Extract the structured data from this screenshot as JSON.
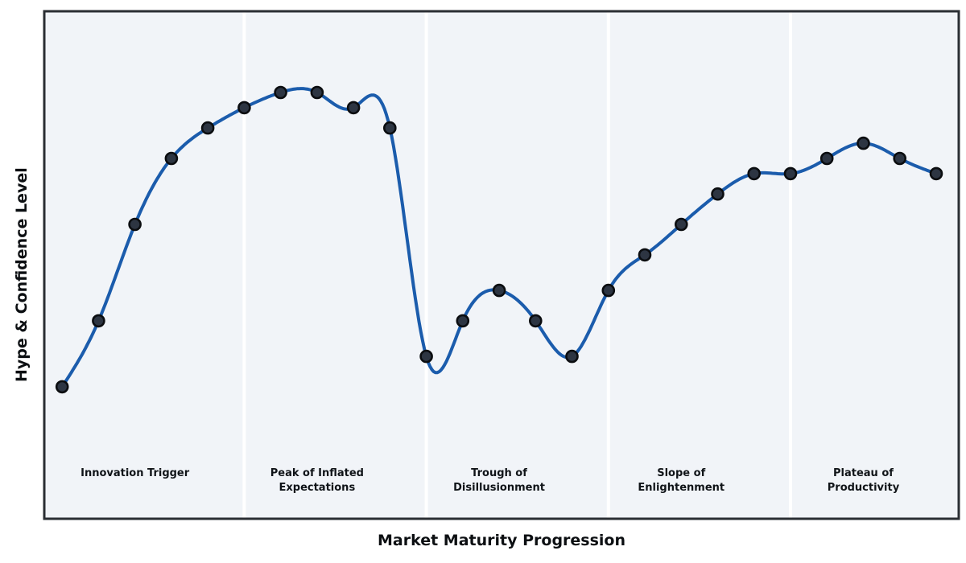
{
  "chart_data": {
    "type": "line",
    "subtype": "hype-cycle",
    "title": "",
    "xlabel": "Market Maturity Progression",
    "ylabel": "Hype & Confidence Level",
    "x": [
      0,
      1,
      2,
      3,
      4,
      5,
      6,
      7,
      8,
      9,
      10,
      11,
      12,
      13,
      14,
      15,
      16,
      17,
      18,
      19,
      20,
      21,
      22,
      23,
      24
    ],
    "series": [
      {
        "name": "Hype & Confidence Level",
        "values": [
          26,
          39,
          58,
          71,
          77,
          81,
          84,
          84,
          81,
          77,
          32,
          39,
          45,
          39,
          32,
          45,
          52,
          58,
          64,
          68,
          68,
          71,
          74,
          71,
          68
        ]
      }
    ],
    "curve_extra_anchors": [
      [
        8.53,
        83.5
      ],
      [
        10.3,
        28.8
      ]
    ],
    "xlim": [
      -0.49,
      24.62
    ],
    "ylim": [
      0,
      100
    ],
    "grid": false,
    "legend": "none",
    "tick_labels": "none",
    "phase_boundaries": [
      5,
      10,
      15,
      20
    ],
    "phases": [
      {
        "label": "Innovation Trigger",
        "center_x": 2
      },
      {
        "label": "Peak of Inflated\nExpectations",
        "center_x": 7
      },
      {
        "label": "Trough of\nDisillusionment",
        "center_x": 12
      },
      {
        "label": "Slope of\nEnlightenment",
        "center_x": 17
      },
      {
        "label": "Plateau of\nProductivity",
        "center_x": 22
      }
    ],
    "colors": {
      "figure_background": "#ffffff",
      "plot_background": "#f1f4f8",
      "phase_divider": "#ffffff",
      "line": "#1b5cac",
      "marker_fill": "#2d3542",
      "marker_edge": "#0b0d10",
      "frame": "#2a2e33",
      "text": "#0c0f12"
    }
  }
}
